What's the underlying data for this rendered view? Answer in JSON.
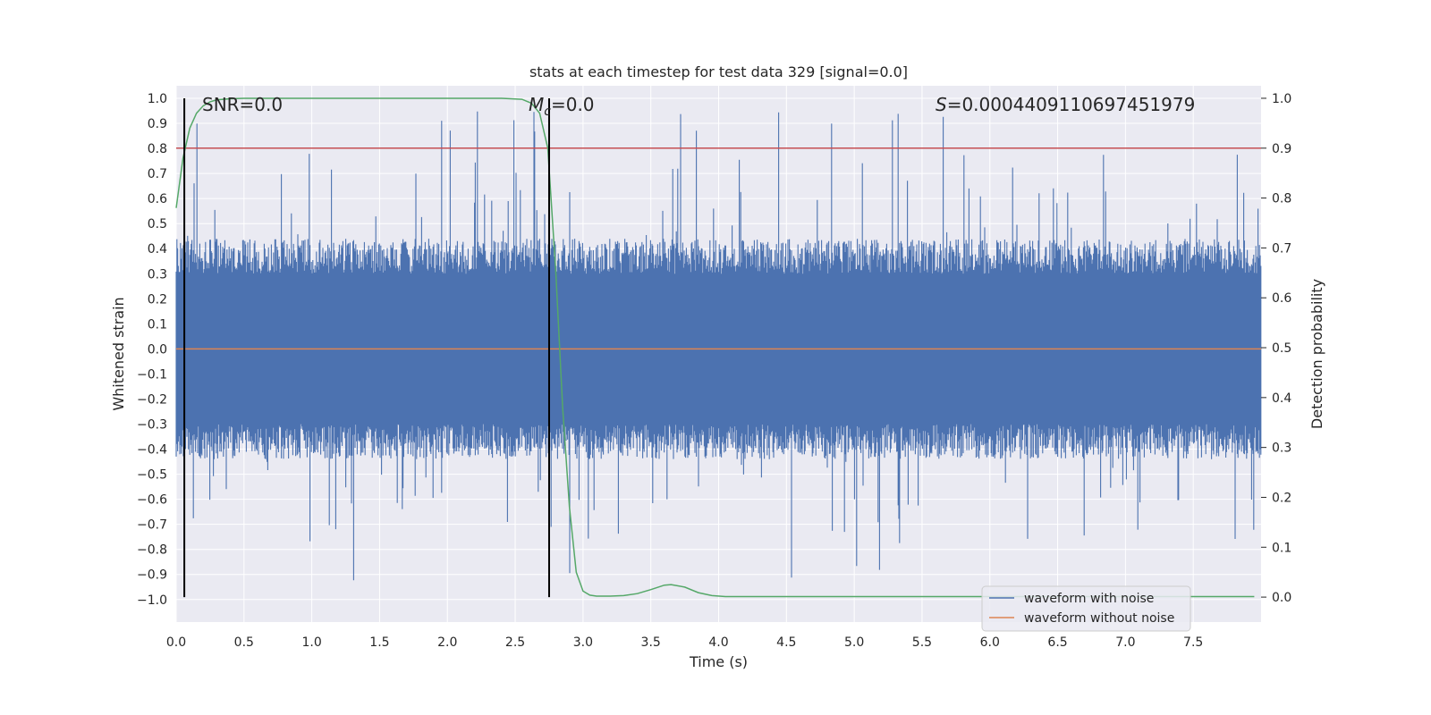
{
  "chart_data": {
    "type": "line",
    "title": "stats at each timestep for test data 329 [signal=0.0]",
    "xlabel": "Time (s)",
    "ylabel_left": "Whitened strain",
    "ylabel_right": "Detection probability",
    "xlim": [
      0.0,
      8.0
    ],
    "ylim_left": [
      -1.09,
      1.05
    ],
    "ylim_right": [
      -0.05,
      1.025
    ],
    "x_ticks": [
      "0.0",
      "0.5",
      "1.0",
      "1.5",
      "2.0",
      "2.5",
      "3.0",
      "3.5",
      "4.0",
      "4.5",
      "5.0",
      "5.5",
      "6.0",
      "6.5",
      "7.0",
      "7.5"
    ],
    "y_left_ticks": [
      "1.0",
      "0.9",
      "0.8",
      "0.7",
      "0.6",
      "0.5",
      "0.4",
      "0.3",
      "0.2",
      "0.1",
      "0.0",
      "−0.1",
      "−0.2",
      "−0.3",
      "−0.4",
      "−0.5",
      "−0.6",
      "−0.7",
      "−0.8",
      "−0.9",
      "−1.0"
    ],
    "y_right_ticks": [
      "1.0",
      "0.9",
      "0.8",
      "0.7",
      "0.6",
      "0.5",
      "0.4",
      "0.3",
      "0.2",
      "0.1",
      "0.0"
    ],
    "annotations": {
      "snr": "SNR=0.0",
      "mc_symbol": "M",
      "mc_sub": "c",
      "mc_value": "=0.0",
      "s_symbol": "S",
      "s_value": "=0.0004409110697451979"
    },
    "vertical_lines_x": [
      0.06,
      2.75
    ],
    "threshold_probability": 0.9,
    "series": [
      {
        "name": "waveform with noise",
        "color": "#4c72b0",
        "description_kind": "dense noise",
        "envelope_typical": 0.4,
        "envelope_max": 1.0
      },
      {
        "name": "waveform without noise",
        "color": "#dd8452",
        "x": [
          0.0,
          8.0
        ],
        "y": [
          0.0,
          0.0
        ]
      },
      {
        "name": "detection probability",
        "color": "#55a868",
        "axis": "right",
        "x": [
          0.0,
          0.05,
          0.1,
          0.15,
          0.2,
          0.25,
          0.3,
          0.4,
          0.5,
          1.0,
          2.0,
          2.4,
          2.55,
          2.62,
          2.68,
          2.74,
          2.8,
          2.85,
          2.9,
          2.95,
          3.0,
          3.05,
          3.1,
          3.2,
          3.3,
          3.4,
          3.5,
          3.6,
          3.65,
          3.75,
          3.85,
          3.95,
          4.05,
          4.2,
          5.0,
          6.0,
          7.0,
          7.95
        ],
        "y": [
          0.78,
          0.88,
          0.94,
          0.97,
          0.985,
          0.993,
          0.997,
          0.999,
          1.0,
          1.0,
          1.0,
          1.0,
          0.998,
          0.99,
          0.97,
          0.9,
          0.65,
          0.38,
          0.18,
          0.05,
          0.012,
          0.004,
          0.002,
          0.002,
          0.003,
          0.007,
          0.015,
          0.024,
          0.025,
          0.02,
          0.009,
          0.003,
          0.001,
          0.001,
          0.001,
          0.001,
          0.001,
          0.001
        ]
      },
      {
        "name": "threshold",
        "color": "#c44e52",
        "axis": "right",
        "x": [
          0.0,
          8.0
        ],
        "y": [
          0.9,
          0.9
        ]
      }
    ],
    "legend": {
      "location": "lower-right",
      "entries": [
        {
          "label": "waveform with noise",
          "color": "#4c72b0"
        },
        {
          "label": "waveform without noise",
          "color": "#dd8452"
        }
      ]
    },
    "background_color": "#eaeaf2",
    "grid": true
  }
}
